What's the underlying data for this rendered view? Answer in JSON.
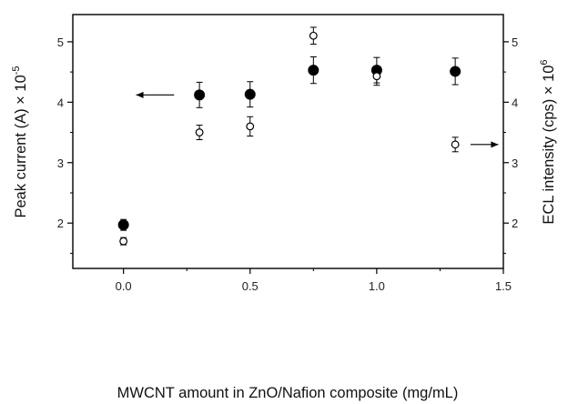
{
  "chart_data": {
    "type": "scatter",
    "title": "",
    "xlabel": "MWCNT amount in ZnO/Nafion composite (mg/mL)",
    "ylabel_left": "Peak current (A) × 10",
    "ylabel_left_exponent": "-5",
    "ylabel_right": "ECL intensity (cps) × 10",
    "ylabel_right_exponent": "6",
    "xlim": [
      -0.2,
      1.5
    ],
    "ylim_left": [
      1.25,
      5.45
    ],
    "ylim_right": [
      1.25,
      5.45
    ],
    "x_ticks": [
      0.0,
      0.5,
      1.0,
      1.5
    ],
    "x_tick_labels": [
      "0.0",
      "0.5",
      "1.0",
      "1.5"
    ],
    "y_ticks_left": [
      2,
      3,
      4,
      5
    ],
    "y_tick_labels_left": [
      "2",
      "3",
      "4",
      "5"
    ],
    "y_ticks_right": [
      2,
      3,
      4,
      5
    ],
    "y_tick_labels_right": [
      "2",
      "3",
      "4",
      "5"
    ],
    "grid": false,
    "legend": "none",
    "series": [
      {
        "axis": "left",
        "marker": "filled-circle",
        "color": "#000000",
        "x": [
          0.0,
          0.3,
          0.5,
          0.75,
          1.0,
          1.31
        ],
        "y": [
          1.97,
          4.12,
          4.13,
          4.53,
          4.53,
          4.51
        ],
        "error": [
          0.09,
          0.21,
          0.21,
          0.22,
          0.21,
          0.22
        ]
      },
      {
        "axis": "right",
        "marker": "open-circle",
        "color": "#000000",
        "x": [
          0.0,
          0.3,
          0.5,
          0.75,
          1.0,
          1.31
        ],
        "y": [
          1.7,
          3.5,
          3.6,
          5.1,
          4.43,
          3.3
        ],
        "error": [
          0.06,
          0.12,
          0.16,
          0.14,
          0.15,
          0.12
        ]
      }
    ],
    "annotations": [
      {
        "type": "arrow",
        "direction": "left",
        "points_to_axis": "left",
        "x": [
          0.2,
          0.05
        ],
        "y": 4.12
      },
      {
        "type": "arrow",
        "direction": "right",
        "points_to_axis": "right",
        "x": [
          1.37,
          1.48
        ],
        "y": 3.3
      }
    ]
  }
}
